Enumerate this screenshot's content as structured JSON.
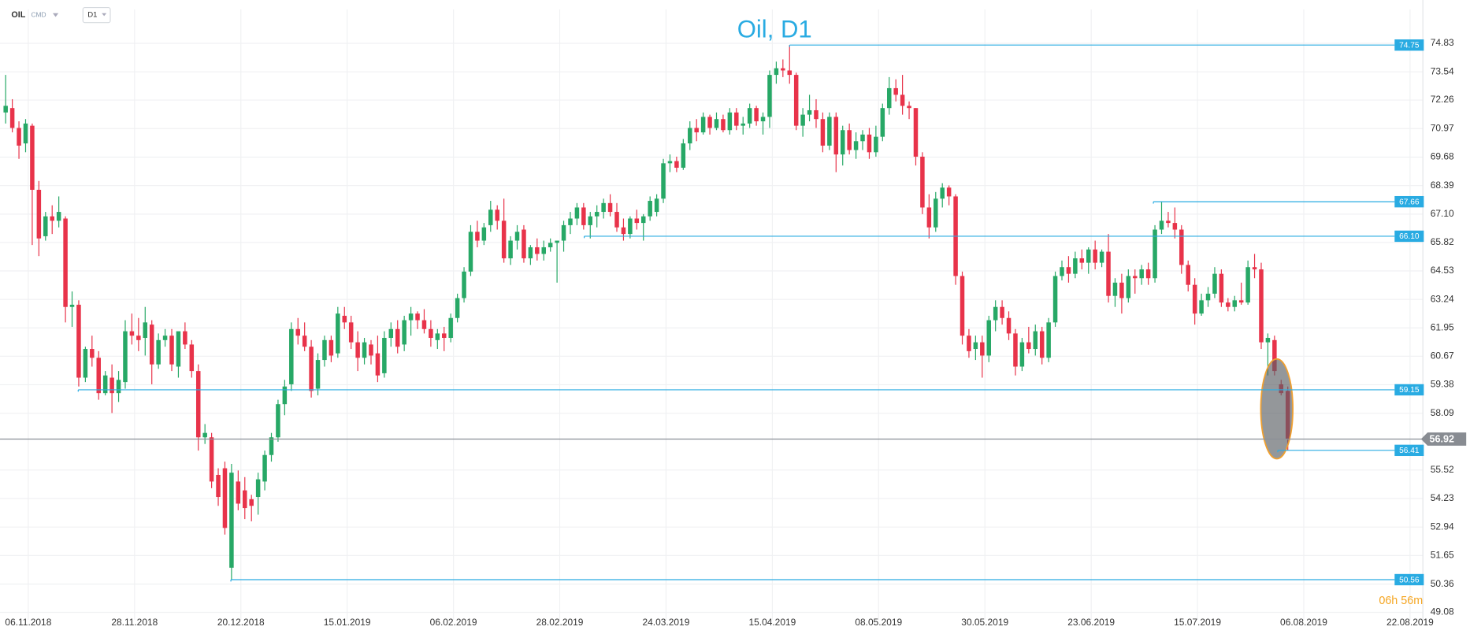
{
  "header": {
    "symbol": "OIL",
    "market": "CMD",
    "interval": "D1"
  },
  "chart_data": {
    "type": "candlestick",
    "title": "Oil, D1",
    "up_color": "#27a866",
    "down_color": "#e8334a",
    "grid": true,
    "ylim": [
      48.74,
      75.51
    ],
    "yticks": [
      74.83,
      73.54,
      72.26,
      70.97,
      69.68,
      68.39,
      {
        "value": 67.1,
        "label": "67.10"
      },
      65.82,
      64.53,
      63.24,
      61.95,
      60.67,
      59.38,
      58.09,
      55.52,
      54.23,
      52.94,
      51.65,
      50.36,
      49.08
    ],
    "xticks": [
      "06.11.2018",
      "28.11.2018",
      "20.12.2018",
      "15.01.2019",
      "06.02.2019",
      "28.02.2019",
      "24.03.2019",
      "15.04.2019",
      "08.05.2019",
      "30.05.2019",
      "23.06.2019",
      "15.07.2019",
      "06.08.2019",
      "22.08.2019"
    ],
    "levels": [
      74.75,
      67.66,
      {
        "value": 66.1,
        "label": "66.10"
      },
      59.15,
      56.41,
      50.56
    ],
    "last_price": 56.92,
    "countdown": "06h 56m",
    "ohlc": [
      [
        71.7,
        73.4,
        71.2,
        72.0
      ],
      [
        71.9,
        72.3,
        70.8,
        71.0
      ],
      [
        71.0,
        71.3,
        69.6,
        70.2
      ],
      [
        70.3,
        71.4,
        69.9,
        71.2
      ],
      [
        71.1,
        71.2,
        65.7,
        68.2
      ],
      [
        68.2,
        68.6,
        65.2,
        66.0
      ],
      [
        66.1,
        67.2,
        65.9,
        67.0
      ],
      [
        67.0,
        67.5,
        66.2,
        66.8
      ],
      [
        66.8,
        67.9,
        66.5,
        67.2
      ],
      [
        66.9,
        67.0,
        62.2,
        62.9
      ],
      [
        62.9,
        63.6,
        62.0,
        63.0
      ],
      [
        63.0,
        63.2,
        59.3,
        59.7
      ],
      [
        59.7,
        61.1,
        59.5,
        61.0
      ],
      [
        61.0,
        61.6,
        60.2,
        60.6
      ],
      [
        60.6,
        60.9,
        58.7,
        59.0
      ],
      [
        59.0,
        60.0,
        58.9,
        59.8
      ],
      [
        59.7,
        60.3,
        58.1,
        59.0
      ],
      [
        59.0,
        60.0,
        58.6,
        59.6
      ],
      [
        59.5,
        62.3,
        59.2,
        61.8
      ],
      [
        61.8,
        62.6,
        61.2,
        61.6
      ],
      [
        61.6,
        62.4,
        60.9,
        61.4
      ],
      [
        61.5,
        62.9,
        60.7,
        62.2
      ],
      [
        62.1,
        62.3,
        59.4,
        60.3
      ],
      [
        60.3,
        61.7,
        60.1,
        61.4
      ],
      [
        61.4,
        61.9,
        61.1,
        61.6
      ],
      [
        61.6,
        61.9,
        60.0,
        60.3
      ],
      [
        60.2,
        61.7,
        59.7,
        61.8
      ],
      [
        61.8,
        62.2,
        61.0,
        61.2
      ],
      [
        61.2,
        61.4,
        59.7,
        60.0
      ],
      [
        60.0,
        60.3,
        56.4,
        57.0
      ],
      [
        57.0,
        57.6,
        56.7,
        57.2
      ],
      [
        57.0,
        57.2,
        54.7,
        55.0
      ],
      [
        55.3,
        55.6,
        53.9,
        54.3
      ],
      [
        55.6,
        55.9,
        52.6,
        52.9
      ],
      [
        51.1,
        55.8,
        50.56,
        55.4
      ],
      [
        55.0,
        55.5,
        53.7,
        54.0
      ],
      [
        54.6,
        55.2,
        53.3,
        53.8
      ],
      [
        54.2,
        54.4,
        53.2,
        53.9
      ],
      [
        54.3,
        55.4,
        53.5,
        55.1
      ],
      [
        55.0,
        56.4,
        54.6,
        56.2
      ],
      [
        56.2,
        57.2,
        55.9,
        57.0
      ],
      [
        57.0,
        58.7,
        56.8,
        58.5
      ],
      [
        58.5,
        59.6,
        58.0,
        59.3
      ],
      [
        59.4,
        62.2,
        59.1,
        61.9
      ],
      [
        61.9,
        62.4,
        61.2,
        61.6
      ],
      [
        61.6,
        62.2,
        60.9,
        61.1
      ],
      [
        61.1,
        61.4,
        58.8,
        59.1
      ],
      [
        59.2,
        60.8,
        58.9,
        60.5
      ],
      [
        60.5,
        61.6,
        60.2,
        61.4
      ],
      [
        61.4,
        61.6,
        60.4,
        60.7
      ],
      [
        60.8,
        62.9,
        60.6,
        62.6
      ],
      [
        62.5,
        62.9,
        61.9,
        62.2
      ],
      [
        62.2,
        62.5,
        61.0,
        61.3
      ],
      [
        61.3,
        61.8,
        60.0,
        60.6
      ],
      [
        60.6,
        61.5,
        60.3,
        61.3
      ],
      [
        61.2,
        61.4,
        60.3,
        60.7
      ],
      [
        60.8,
        61.6,
        59.5,
        59.8
      ],
      [
        59.9,
        61.8,
        59.7,
        61.5
      ],
      [
        61.5,
        62.2,
        61.1,
        61.9
      ],
      [
        61.9,
        62.3,
        60.8,
        61.1
      ],
      [
        61.2,
        62.5,
        60.9,
        62.3
      ],
      [
        62.3,
        62.9,
        61.6,
        62.6
      ],
      [
        62.6,
        62.7,
        61.9,
        62.3
      ],
      [
        62.3,
        62.8,
        61.7,
        61.9
      ],
      [
        61.9,
        62.3,
        61.1,
        61.5
      ],
      [
        61.4,
        61.9,
        61.0,
        61.7
      ],
      [
        61.7,
        62.0,
        60.9,
        61.5
      ],
      [
        61.5,
        62.6,
        61.3,
        62.4
      ],
      [
        62.4,
        63.5,
        62.2,
        63.3
      ],
      [
        63.3,
        64.7,
        63.1,
        64.5
      ],
      [
        64.5,
        66.6,
        64.3,
        66.3
      ],
      [
        66.3,
        66.8,
        65.6,
        65.9
      ],
      [
        65.9,
        66.7,
        65.7,
        66.5
      ],
      [
        66.6,
        67.7,
        66.3,
        67.3
      ],
      [
        67.3,
        67.5,
        66.4,
        66.8
      ],
      [
        66.8,
        67.8,
        64.9,
        65.1
      ],
      [
        65.1,
        66.1,
        64.8,
        65.9
      ],
      [
        65.9,
        66.6,
        65.5,
        66.3
      ],
      [
        66.4,
        66.6,
        64.9,
        65.1
      ],
      [
        65.1,
        65.7,
        64.8,
        65.6
      ],
      [
        65.6,
        66.0,
        65.0,
        65.3
      ],
      [
        65.3,
        65.9,
        65.0,
        65.6
      ],
      [
        65.6,
        66.0,
        65.4,
        65.8
      ],
      [
        65.8,
        65.9,
        64.0,
        65.9
      ],
      [
        65.9,
        66.8,
        65.4,
        66.6
      ],
      [
        66.6,
        67.2,
        66.2,
        66.9
      ],
      [
        66.9,
        67.6,
        66.6,
        67.4
      ],
      [
        67.4,
        67.6,
        66.4,
        66.6
      ],
      [
        66.6,
        67.2,
        66.0,
        67.0
      ],
      [
        67.0,
        67.5,
        66.5,
        67.2
      ],
      [
        67.2,
        67.8,
        66.9,
        67.6
      ],
      [
        67.6,
        68.0,
        67.0,
        67.2
      ],
      [
        67.2,
        67.6,
        66.3,
        66.5
      ],
      [
        66.5,
        66.9,
        65.9,
        66.2
      ],
      [
        66.2,
        67.0,
        66.0,
        66.9
      ],
      [
        66.9,
        67.3,
        66.4,
        66.7
      ],
      [
        66.7,
        67.1,
        65.9,
        67.0
      ],
      [
        67.0,
        67.9,
        66.8,
        67.7
      ],
      [
        67.2,
        68.0,
        67.0,
        67.8
      ],
      [
        67.8,
        69.6,
        67.6,
        69.4
      ],
      [
        69.4,
        69.8,
        69.0,
        69.5
      ],
      [
        69.5,
        69.7,
        69.0,
        69.2
      ],
      [
        69.2,
        70.5,
        69.1,
        70.3
      ],
      [
        70.3,
        71.3,
        70.0,
        71.0
      ],
      [
        71.0,
        71.4,
        70.4,
        70.8
      ],
      [
        70.8,
        71.7,
        70.7,
        71.5
      ],
      [
        71.5,
        71.6,
        70.7,
        71.0
      ],
      [
        71.0,
        71.7,
        70.9,
        71.4
      ],
      [
        71.4,
        71.6,
        70.8,
        70.9
      ],
      [
        70.9,
        71.9,
        70.7,
        71.7
      ],
      [
        71.7,
        71.9,
        70.9,
        71.1
      ],
      [
        71.1,
        71.5,
        70.7,
        71.2
      ],
      [
        71.2,
        72.1,
        71.0,
        71.9
      ],
      [
        71.9,
        72.0,
        71.1,
        71.3
      ],
      [
        71.3,
        71.7,
        70.7,
        71.5
      ],
      [
        71.5,
        73.6,
        71.0,
        73.4
      ],
      [
        73.4,
        74.0,
        73.0,
        73.7
      ],
      [
        73.7,
        74.1,
        73.3,
        73.6
      ],
      [
        73.6,
        74.75,
        73.0,
        73.4
      ],
      [
        73.4,
        73.5,
        70.9,
        71.1
      ],
      [
        71.1,
        71.9,
        70.6,
        71.6
      ],
      [
        71.6,
        72.5,
        71.3,
        71.8
      ],
      [
        71.8,
        72.3,
        71.0,
        71.4
      ],
      [
        71.4,
        71.7,
        69.9,
        70.2
      ],
      [
        70.2,
        71.7,
        70.0,
        71.5
      ],
      [
        71.5,
        71.7,
        69.0,
        69.8
      ],
      [
        69.8,
        71.1,
        69.3,
        70.9
      ],
      [
        70.9,
        71.2,
        69.8,
        70.0
      ],
      [
        70.0,
        70.8,
        69.6,
        70.4
      ],
      [
        70.4,
        70.9,
        70.0,
        70.7
      ],
      [
        70.7,
        71.0,
        69.6,
        69.9
      ],
      [
        69.9,
        71.1,
        69.7,
        70.6
      ],
      [
        70.6,
        72.1,
        70.4,
        71.9
      ],
      [
        71.9,
        73.3,
        71.6,
        72.8
      ],
      [
        72.8,
        73.2,
        72.2,
        72.5
      ],
      [
        72.5,
        73.4,
        71.6,
        72.0
      ],
      [
        72.0,
        72.2,
        71.4,
        71.9
      ],
      [
        71.9,
        71.9,
        69.3,
        69.7
      ],
      [
        69.7,
        69.9,
        67.1,
        67.4
      ],
      [
        67.4,
        68.0,
        66.0,
        66.5
      ],
      [
        66.5,
        68.1,
        66.3,
        67.8
      ],
      [
        67.8,
        68.5,
        67.4,
        68.3
      ],
      [
        68.3,
        68.4,
        67.5,
        67.9
      ],
      [
        67.9,
        68.0,
        63.9,
        64.3
      ],
      [
        64.3,
        64.5,
        61.2,
        61.6
      ],
      [
        61.6,
        61.9,
        60.6,
        60.9
      ],
      [
        61.0,
        61.6,
        60.5,
        61.3
      ],
      [
        61.3,
        61.6,
        59.7,
        60.7
      ],
      [
        60.7,
        62.5,
        60.4,
        62.3
      ],
      [
        62.3,
        63.2,
        61.8,
        62.9
      ],
      [
        62.9,
        63.2,
        62.1,
        62.4
      ],
      [
        62.4,
        62.7,
        61.4,
        61.7
      ],
      [
        61.7,
        61.9,
        59.8,
        60.2
      ],
      [
        60.2,
        61.5,
        60.0,
        61.3
      ],
      [
        61.3,
        62.0,
        60.8,
        61.0
      ],
      [
        61.0,
        62.1,
        60.7,
        61.8
      ],
      [
        61.8,
        62.0,
        60.3,
        60.6
      ],
      [
        60.6,
        62.4,
        60.4,
        62.2
      ],
      [
        62.2,
        64.5,
        62.0,
        64.3
      ],
      [
        64.3,
        65.0,
        64.1,
        64.7
      ],
      [
        64.7,
        65.2,
        64.0,
        64.4
      ],
      [
        64.4,
        65.4,
        64.2,
        65.1
      ],
      [
        65.1,
        65.5,
        64.6,
        64.9
      ],
      [
        64.9,
        65.6,
        64.4,
        65.5
      ],
      [
        65.5,
        65.9,
        64.6,
        64.9
      ],
      [
        64.9,
        65.5,
        64.7,
        65.4
      ],
      [
        65.4,
        66.2,
        63.1,
        63.4
      ],
      [
        63.4,
        64.2,
        62.9,
        64.0
      ],
      [
        64.0,
        64.4,
        62.6,
        63.3
      ],
      [
        63.3,
        64.6,
        63.1,
        64.3
      ],
      [
        64.3,
        64.6,
        63.5,
        64.2
      ],
      [
        64.2,
        64.8,
        63.9,
        64.6
      ],
      [
        64.6,
        64.9,
        63.9,
        64.2
      ],
      [
        64.2,
        66.6,
        64.0,
        66.4
      ],
      [
        66.4,
        67.66,
        66.2,
        66.8
      ],
      [
        66.8,
        67.2,
        66.5,
        66.7
      ],
      [
        66.7,
        67.4,
        66.0,
        66.4
      ],
      [
        66.4,
        66.6,
        64.4,
        64.8
      ],
      [
        64.8,
        65.0,
        63.6,
        63.9
      ],
      [
        63.9,
        64.2,
        62.1,
        62.6
      ],
      [
        62.6,
        63.5,
        62.5,
        63.2
      ],
      [
        63.2,
        63.8,
        62.9,
        63.5
      ],
      [
        63.5,
        64.7,
        63.3,
        64.4
      ],
      [
        64.4,
        64.6,
        62.9,
        63.1
      ],
      [
        63.1,
        63.3,
        62.7,
        62.9
      ],
      [
        62.9,
        63.4,
        62.7,
        63.2
      ],
      [
        63.2,
        64.0,
        63.0,
        63.1
      ],
      [
        63.1,
        65.0,
        63.0,
        64.7
      ],
      [
        64.7,
        65.3,
        64.2,
        64.6
      ],
      [
        64.6,
        64.9,
        61.0,
        61.3
      ],
      [
        61.3,
        61.7,
        59.8,
        61.5
      ],
      [
        61.4,
        61.6,
        59.8,
        60.0
      ],
      [
        59.4,
        59.6,
        58.9,
        59.0
      ],
      [
        59.1,
        59.3,
        56.41,
        56.92
      ]
    ]
  }
}
